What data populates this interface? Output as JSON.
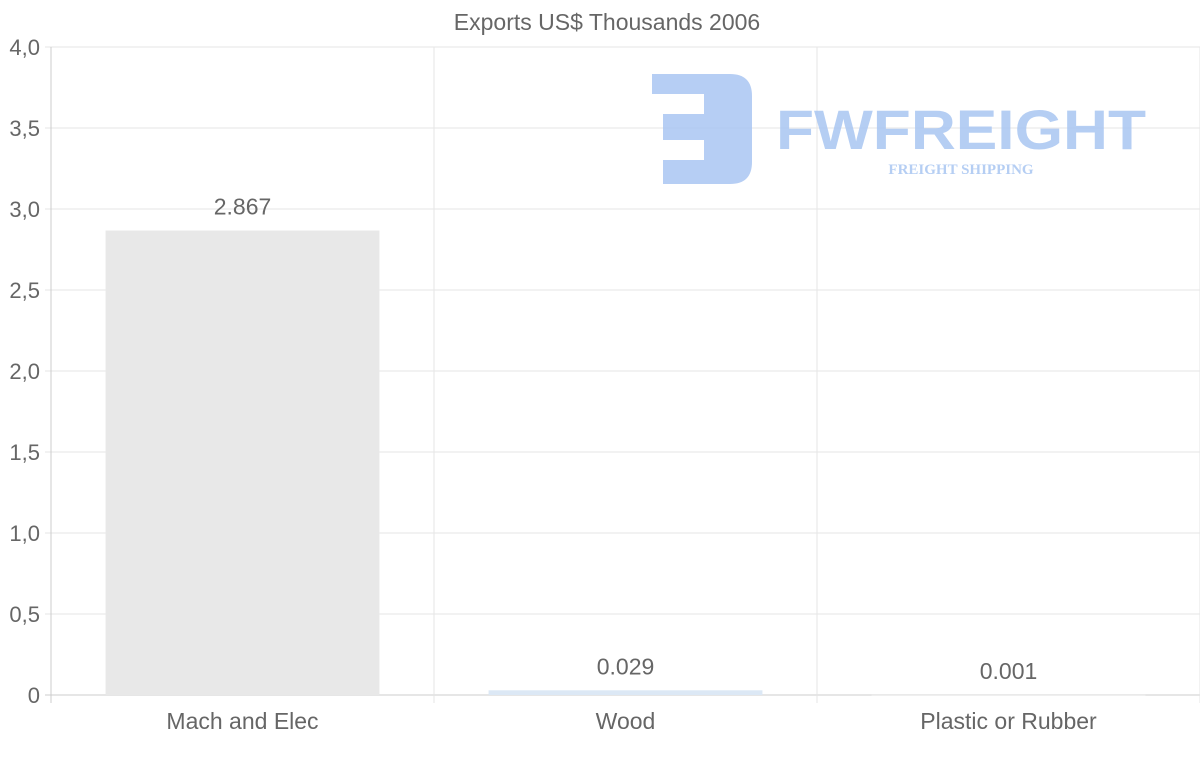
{
  "chart_data": {
    "type": "bar",
    "title": "Exports US$ Thousands 2006",
    "categories": [
      "Mach and Elec",
      "Wood",
      "Plastic or Rubber"
    ],
    "values": [
      2.867,
      0.029,
      0.001
    ],
    "data_labels": [
      "2.867",
      "0.029",
      "0.001"
    ],
    "bar_colors": [
      "#e8e8e8",
      "#dce8f5",
      "#e8e8e8"
    ],
    "xlabel": "",
    "ylabel": "",
    "ylim": [
      0,
      4
    ],
    "yticks": [
      0,
      0.5,
      1,
      1.5,
      2,
      2.5,
      3,
      3.5,
      4
    ],
    "ytick_labels": [
      "0",
      "0,5",
      "1,0",
      "1,5",
      "2,0",
      "2,5",
      "3,0",
      "3,5",
      "4,0"
    ],
    "grid": true,
    "legend": "none"
  },
  "watermark": {
    "brand": "FWFREIGHT",
    "tagline": "FREIGHT SHIPPING",
    "color": "#a9c6f2"
  }
}
